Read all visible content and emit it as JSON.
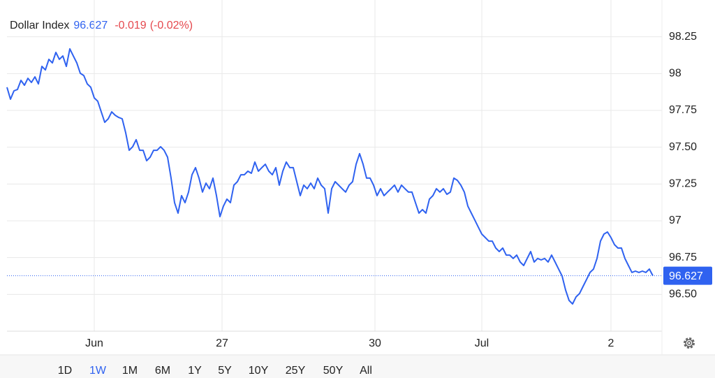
{
  "chart_data": {
    "type": "line",
    "title": "Dollar Index",
    "price": 96.627,
    "change": -0.019,
    "change_pct": "(-0.02%)",
    "color": "#2f62f0",
    "up_color": "#2f62f0",
    "down_color": "#e5484d",
    "grid": true,
    "y_axis_side": "right",
    "values": [
      97.907,
      97.826,
      97.883,
      97.892,
      97.954,
      97.921,
      97.968,
      97.94,
      97.978,
      97.93,
      98.049,
      98.025,
      98.097,
      98.073,
      98.144,
      98.097,
      98.12,
      98.049,
      98.168,
      98.12,
      98.073,
      98.002,
      97.987,
      97.93,
      97.907,
      97.835,
      97.812,
      97.74,
      97.669,
      97.693,
      97.74,
      97.717,
      97.702,
      97.693,
      97.598,
      97.479,
      97.503,
      97.551,
      97.479,
      97.479,
      97.408,
      97.432,
      97.479,
      97.479,
      97.503,
      97.479,
      97.432,
      97.29,
      97.123,
      97.052,
      97.171,
      97.123,
      97.195,
      97.313,
      97.361,
      97.29,
      97.195,
      97.256,
      97.218,
      97.29,
      97.171,
      97.028,
      97.1,
      97.147,
      97.123,
      97.242,
      97.266,
      97.313,
      97.313,
      97.337,
      97.323,
      97.399,
      97.337,
      97.361,
      97.384,
      97.337,
      97.313,
      97.361,
      97.242,
      97.337,
      97.399,
      97.361,
      97.361,
      97.266,
      97.171,
      97.242,
      97.218,
      97.256,
      97.218,
      97.29,
      97.242,
      97.218,
      97.052,
      97.218,
      97.266,
      97.242,
      97.218,
      97.195,
      97.242,
      97.266,
      97.384,
      97.456,
      97.384,
      97.29,
      97.29,
      97.242,
      97.171,
      97.218,
      97.171,
      97.195,
      97.218,
      97.242,
      97.195,
      97.242,
      97.218,
      97.195,
      97.195,
      97.123,
      97.052,
      97.076,
      97.052,
      97.147,
      97.171,
      97.218,
      97.195,
      97.218,
      97.18,
      97.195,
      97.29,
      97.275,
      97.242,
      97.195,
      97.1,
      97.052,
      97.005,
      96.957,
      96.91,
      96.886,
      96.862,
      96.862,
      96.815,
      96.791,
      96.815,
      96.767,
      96.767,
      96.744,
      96.767,
      96.72,
      96.696,
      96.744,
      96.791,
      96.72,
      96.744,
      96.734,
      96.744,
      96.72,
      96.767,
      96.72,
      96.672,
      96.625,
      96.53,
      96.459,
      96.435,
      96.483,
      96.506,
      96.554,
      96.601,
      96.649,
      96.672,
      96.744,
      96.862,
      96.91,
      96.924,
      96.886,
      96.838,
      96.815,
      96.815,
      96.744,
      96.696,
      96.649,
      96.658,
      96.649,
      96.658,
      96.649,
      96.672,
      96.627
    ],
    "xlim": [
      0,
      187.6
    ],
    "xticks": [
      {
        "value": 25,
        "label": "Jun"
      },
      {
        "value": 61.6,
        "label": "27"
      },
      {
        "value": 105.4,
        "label": "30"
      },
      {
        "value": 136,
        "label": "Jul"
      },
      {
        "value": 173,
        "label": "2"
      }
    ],
    "ylim": [
      96.25,
      98.5
    ],
    "yticks": [
      98.25,
      98,
      97.75,
      {
        "value": 97.5,
        "label": "97.50"
      },
      97.25,
      97,
      96.75,
      {
        "value": 96.5,
        "label": "96.50"
      }
    ]
  },
  "ranges": [
    {
      "label": "1D"
    },
    {
      "label": "1W",
      "selected": true
    },
    {
      "label": "1M"
    },
    {
      "label": "6M"
    },
    {
      "label": "1Y"
    },
    {
      "label": "5Y"
    },
    {
      "label": "10Y"
    },
    {
      "label": "25Y"
    },
    {
      "label": "50Y"
    },
    {
      "label": "All"
    }
  ]
}
